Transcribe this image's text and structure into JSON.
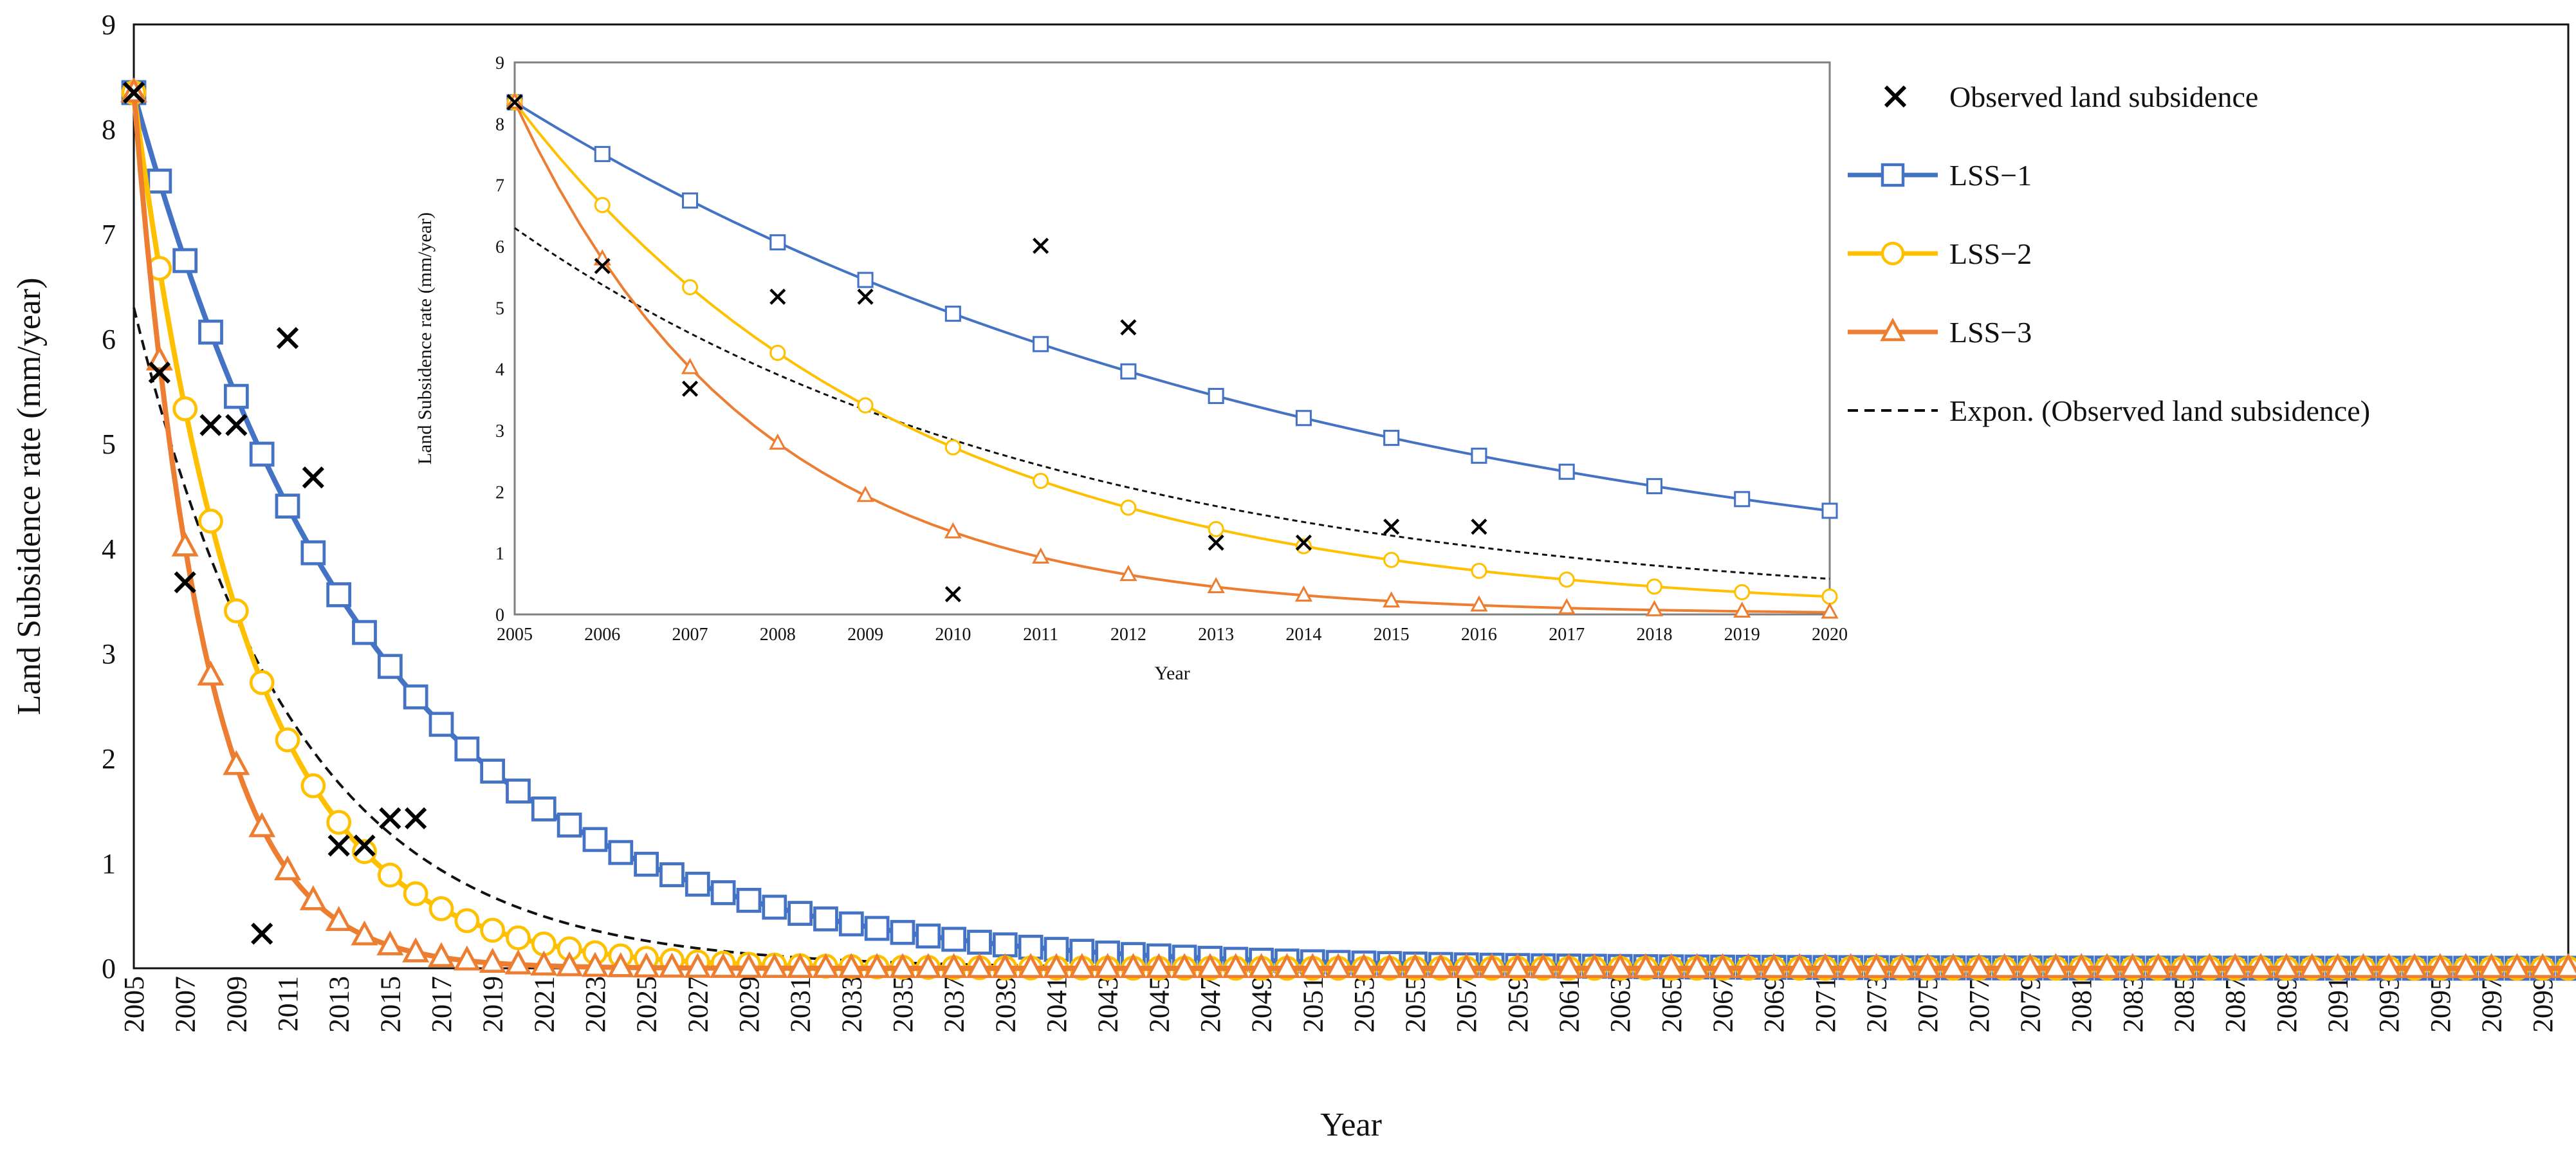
{
  "chart_data": [
    {
      "id": "main",
      "type": "line",
      "title": "",
      "xlabel": "Year",
      "ylabel": "Land Subsidence rate (mm/year)",
      "xlim": [
        2005,
        2100
      ],
      "ylim": [
        0,
        9
      ],
      "yticks": [
        0,
        1,
        2,
        3,
        4,
        5,
        6,
        7,
        8,
        9
      ],
      "xtick_start": 2005,
      "xtick_end": 2099,
      "xtick_step": 2,
      "observed": {
        "name": "Observed land subsidence",
        "x": [
          2005,
          2006,
          2007,
          2008,
          2009,
          2010,
          2011,
          2012,
          2013,
          2014,
          2015,
          2016
        ],
        "y": [
          8.35,
          5.68,
          3.68,
          5.18,
          5.18,
          0.33,
          6.01,
          4.68,
          1.17,
          1.17,
          1.43,
          1.43
        ]
      },
      "series": [
        {
          "name": "LSS−1",
          "marker": "square",
          "color": "#4472C4",
          "y0": 8.35,
          "rate": 0.1065,
          "x_start": 2005,
          "x_end": 2100
        },
        {
          "name": "LSS−2",
          "marker": "circle",
          "color": "#FFC000",
          "y0": 8.35,
          "rate": 0.224,
          "x_start": 2005,
          "x_end": 2100
        },
        {
          "name": "LSS−3",
          "marker": "triangle",
          "color": "#ED7D31",
          "y0": 8.35,
          "rate": 0.3655,
          "x_start": 2005,
          "x_end": 2100
        }
      ],
      "trend": {
        "name": "Expon. (Observed land subsidence)",
        "a": 6.3,
        "b": 0.159,
        "x_start": 2005,
        "x_end": 2100
      }
    },
    {
      "id": "inset",
      "type": "line",
      "title": "",
      "xlabel": "Year",
      "ylabel": "Land Subsidence rate (mm/year)",
      "xlim": [
        2005,
        2020
      ],
      "ylim": [
        0,
        9
      ],
      "yticks": [
        0,
        1,
        2,
        3,
        4,
        5,
        6,
        7,
        8,
        9
      ],
      "xtick_start": 2005,
      "xtick_end": 2020,
      "xtick_step": 1,
      "observed": {
        "name": "Observed land subsidence",
        "x": [
          2005,
          2006,
          2007,
          2008,
          2009,
          2010,
          2011,
          2012,
          2013,
          2014,
          2015,
          2016
        ],
        "y": [
          8.35,
          5.68,
          3.68,
          5.18,
          5.18,
          0.33,
          6.01,
          4.68,
          1.17,
          1.17,
          1.43,
          1.43
        ]
      },
      "series": [
        {
          "name": "LSS−1",
          "marker": "square",
          "color": "#4472C4",
          "y0": 8.35,
          "rate": 0.1065,
          "x_start": 2005,
          "x_end": 2020
        },
        {
          "name": "LSS−2",
          "marker": "circle",
          "color": "#FFC000",
          "y0": 8.35,
          "rate": 0.224,
          "x_start": 2005,
          "x_end": 2020
        },
        {
          "name": "LSS−3",
          "marker": "triangle",
          "color": "#ED7D31",
          "y0": 8.35,
          "rate": 0.3655,
          "x_start": 2005,
          "x_end": 2020
        }
      ],
      "trend": {
        "name": "Expon. (Observed land subsidence)",
        "a": 6.3,
        "b": 0.159,
        "x_start": 2005,
        "x_end": 2020
      }
    }
  ],
  "legend": {
    "position": "top-right",
    "items": [
      {
        "label": "Observed land subsidence",
        "type": "marker-x",
        "color": "#000000"
      },
      {
        "label": "LSS−1",
        "type": "line-square",
        "color": "#4472C4"
      },
      {
        "label": "LSS−2",
        "type": "line-circle",
        "color": "#FFC000"
      },
      {
        "label": "LSS−3",
        "type": "line-triangle",
        "color": "#ED7D31"
      },
      {
        "label": "Expon. (Observed land subsidence)",
        "type": "dashed",
        "color": "#000000"
      }
    ]
  }
}
